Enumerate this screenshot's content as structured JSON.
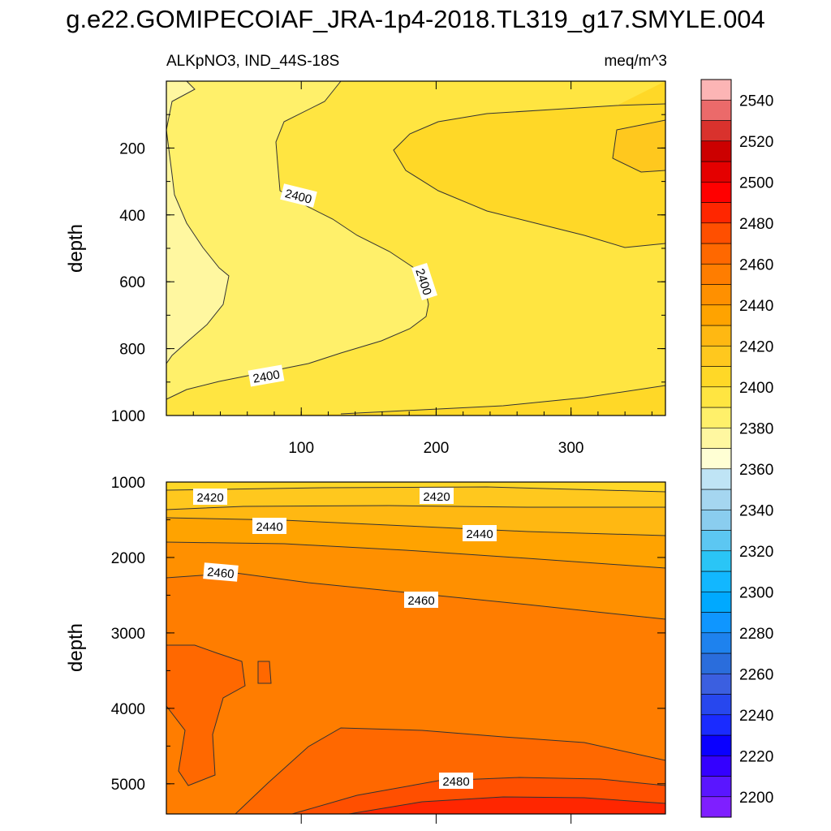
{
  "title": "g.e22.GOMIPECOIAF_JRA-1p4-2018.TL319_g17.SMYLE.004",
  "subtitle_left": "ALKpNO3, IND_44S-18S",
  "subtitle_right": "meq/m^3",
  "chart_data": [
    {
      "type": "contour",
      "panel": "upper",
      "ylabel": "depth",
      "xlim": [
        0,
        370
      ],
      "ylim": [
        1000,
        0
      ],
      "x_ticks": [
        100,
        200,
        300
      ],
      "y_ticks": [
        200,
        400,
        600,
        800,
        1000
      ],
      "contour_labels": [
        "2400",
        "2400",
        "2400"
      ]
    },
    {
      "type": "contour",
      "panel": "lower",
      "ylabel": "depth",
      "xlim": [
        0,
        370
      ],
      "ylim": [
        5400,
        1000
      ],
      "y_ticks": [
        1000,
        2000,
        3000,
        4000,
        5000
      ],
      "contour_labels": [
        "2420",
        "2420",
        "2440",
        "2440",
        "2460",
        "2460",
        "2480"
      ]
    }
  ],
  "colorbar": {
    "levels": [
      2200,
      2210,
      2220,
      2230,
      2240,
      2250,
      2260,
      2270,
      2280,
      2290,
      2300,
      2310,
      2320,
      2330,
      2340,
      2350,
      2360,
      2370,
      2380,
      2390,
      2400,
      2410,
      2420,
      2430,
      2440,
      2450,
      2460,
      2470,
      2480,
      2490,
      2500,
      2510,
      2520,
      2530,
      2540,
      2550
    ],
    "labels": [
      "2200",
      "2220",
      "2240",
      "2260",
      "2280",
      "2300",
      "2320",
      "2340",
      "2360",
      "2380",
      "2400",
      "2420",
      "2440",
      "2460",
      "2480",
      "2500",
      "2520",
      "2540"
    ],
    "colors": [
      "#7f1fff",
      "#5a16ff",
      "#3400ff",
      "#0a00ff",
      "#1a2bff",
      "#2747ee",
      "#3b5fe0",
      "#2a6ddc",
      "#1e82ee",
      "#0f96ff",
      "#00a9ff",
      "#12b7ff",
      "#2ac5f6",
      "#5cc7f2",
      "#8acdef",
      "#a5d6f0",
      "#bfe4f5",
      "#ffffd4",
      "#fff7a0",
      "#fff06a",
      "#ffe541",
      "#ffd827",
      "#ffc81e",
      "#ffb812",
      "#ffa300",
      "#ff9000",
      "#ff7d00",
      "#ff6800",
      "#ff4f00",
      "#ff2600",
      "#ff0000",
      "#e40000",
      "#cc0000",
      "#d9322d",
      "#eb6a6a",
      "#fcb5b5"
    ]
  }
}
